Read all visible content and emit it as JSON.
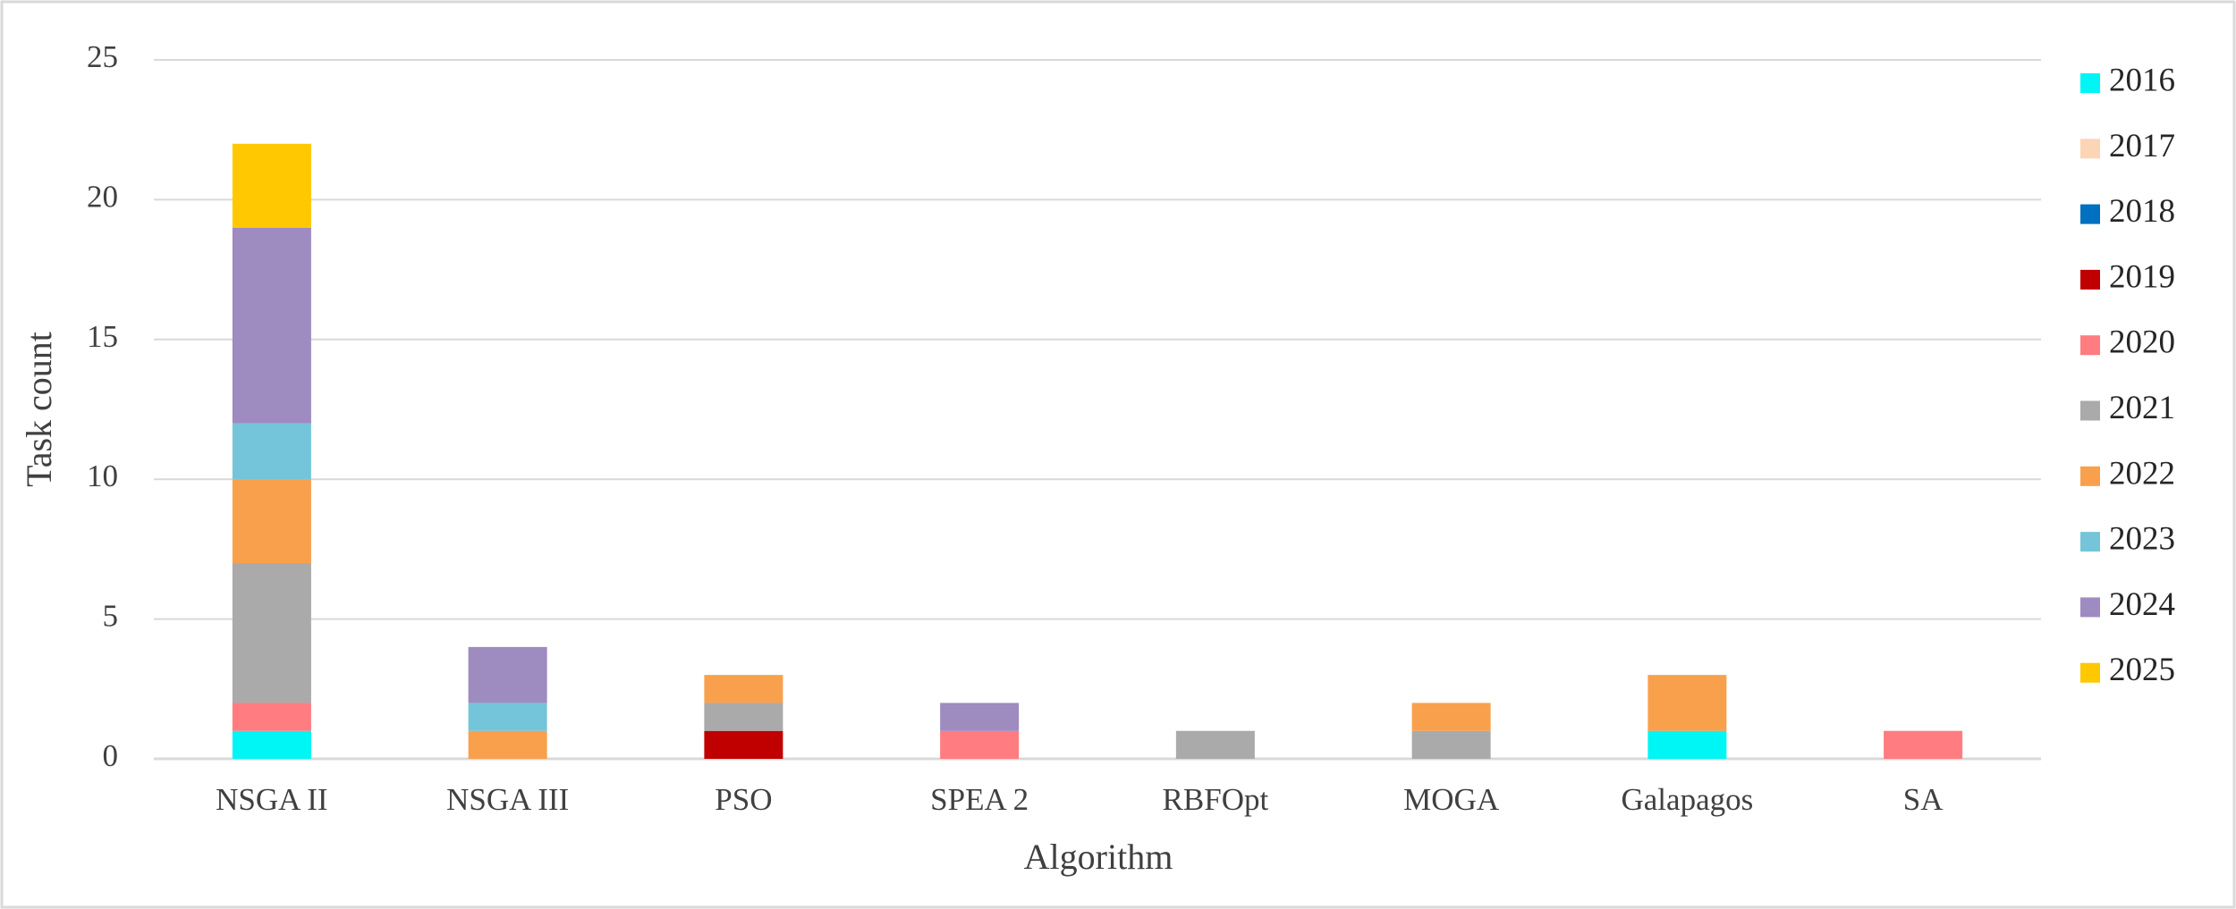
{
  "chart_data": {
    "type": "stacked_bar",
    "x_label": "Algorithm",
    "y_label": "Task count",
    "categories": [
      "NSGA II",
      "NSGA III",
      "PSO",
      "SPEA 2",
      "RBFOpt",
      "MOGA",
      "Galapagos",
      "SA"
    ],
    "series": [
      {
        "name": "2016",
        "color": "#00f5f5",
        "values": [
          1,
          0,
          0,
          0,
          0,
          0,
          1,
          0
        ]
      },
      {
        "name": "2017",
        "color": "#fcd5b5",
        "values": [
          0,
          0,
          0,
          0,
          0,
          0,
          0,
          0
        ]
      },
      {
        "name": "2018",
        "color": "#0070c0",
        "values": [
          0,
          0,
          0,
          0,
          0,
          0,
          0,
          0
        ]
      },
      {
        "name": "2019",
        "color": "#c00000",
        "values": [
          0,
          0,
          1,
          0,
          0,
          0,
          0,
          0
        ]
      },
      {
        "name": "2020",
        "color": "#ff7c80",
        "values": [
          1,
          0,
          0,
          1,
          0,
          0,
          0,
          1
        ]
      },
      {
        "name": "2021",
        "color": "#aaaaaa",
        "values": [
          5,
          0,
          1,
          0,
          1,
          1,
          0,
          0
        ]
      },
      {
        "name": "2022",
        "color": "#f9a04c",
        "values": [
          3,
          1,
          1,
          0,
          0,
          1,
          2,
          0
        ]
      },
      {
        "name": "2023",
        "color": "#74c5d9",
        "values": [
          2,
          1,
          0,
          0,
          0,
          0,
          0,
          0
        ]
      },
      {
        "name": "2024",
        "color": "#9e8bc0",
        "values": [
          7,
          2,
          0,
          1,
          0,
          0,
          0,
          0
        ]
      },
      {
        "name": "2025",
        "color": "#ffc800",
        "values": [
          3,
          0,
          0,
          0,
          0,
          0,
          0,
          0
        ]
      }
    ],
    "ylim": [
      0,
      25
    ],
    "yticks": [
      0,
      5,
      10,
      15,
      20,
      25
    ],
    "grid": true,
    "legend": "right"
  }
}
